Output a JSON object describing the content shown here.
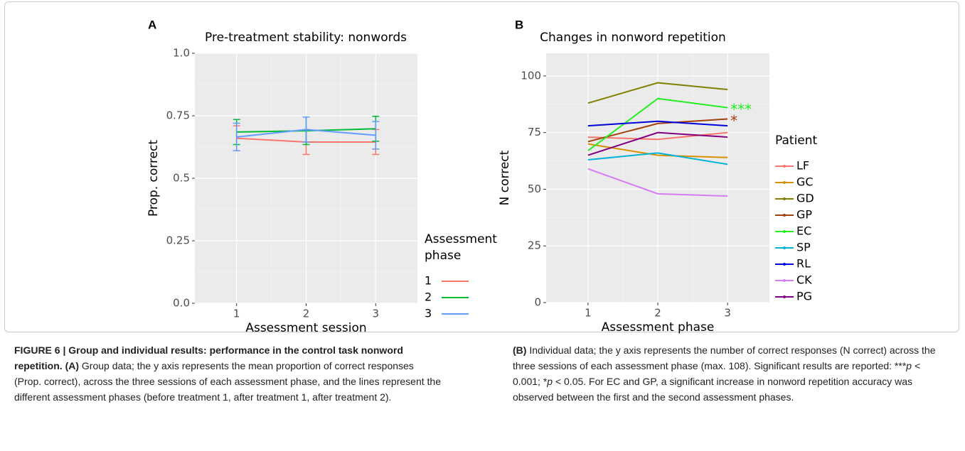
{
  "chart_data": [
    {
      "type": "line",
      "panel": "A",
      "title": "Pre-treatment stability: nonwords",
      "x_label": "Assessment session",
      "y_label": "Prop. correct",
      "x": [
        1,
        2,
        3
      ],
      "xlim": [
        0.4,
        3.6
      ],
      "xticks": [
        1,
        2,
        3
      ],
      "ylim": [
        0,
        1
      ],
      "yticks": [
        {
          "value": 0,
          "label": "0.0"
        },
        0.25,
        {
          "value": 0.5,
          "label": "0.5"
        },
        0.75,
        {
          "value": 1,
          "label": "1.0"
        }
      ],
      "grid": true,
      "legend_title": [
        "Assessment",
        "phase"
      ],
      "series": [
        {
          "name": "1",
          "color": "#F8766D",
          "values": [
            0.66,
            0.645,
            0.645
          ],
          "errors": [
            0.05,
            0.05,
            0.05
          ]
        },
        {
          "name": "2",
          "color": "#00BA38",
          "values": [
            0.685,
            0.69,
            0.698
          ],
          "errors": [
            0.05,
            0.055,
            0.05
          ]
        },
        {
          "name": "3",
          "color": "#619CFF",
          "values": [
            0.665,
            0.695,
            0.672
          ],
          "errors": [
            0.055,
            0.05,
            0.055
          ]
        }
      ]
    },
    {
      "type": "line",
      "panel": "B",
      "title": "Changes in nonword repetition",
      "x_label": "Assessment phase",
      "y_label": "N correct",
      "x": [
        1,
        2,
        3
      ],
      "xlim": [
        0.4,
        3.6
      ],
      "xticks": [
        1,
        2,
        3
      ],
      "ylim": [
        0,
        110
      ],
      "yticks": [
        0,
        25,
        50,
        75,
        100
      ],
      "grid": true,
      "legend_title": [
        "Patient"
      ],
      "series": [
        {
          "name": "LF",
          "color": "#F8766D",
          "values": [
            73,
            72,
            75
          ]
        },
        {
          "name": "GC",
          "color": "#D89000",
          "values": [
            70,
            65,
            64
          ]
        },
        {
          "name": "GD",
          "color": "#808000",
          "values": [
            88,
            97,
            94
          ]
        },
        {
          "name": "GP",
          "color": "#A3400B",
          "values": [
            71,
            79,
            81
          ]
        },
        {
          "name": "EC",
          "color": "#22EE22",
          "values": [
            67,
            90,
            86
          ]
        },
        {
          "name": "SP",
          "color": "#00B4D8",
          "values": [
            63,
            66,
            61
          ]
        },
        {
          "name": "RL",
          "color": "#0000DD",
          "values": [
            78,
            80,
            78
          ]
        },
        {
          "name": "CK",
          "color": "#D67CF0",
          "values": [
            59,
            48,
            47
          ]
        },
        {
          "name": "PG",
          "color": "#800080",
          "values": [
            65,
            75,
            73
          ]
        }
      ],
      "annotations": [
        {
          "text": "***",
          "series": "EC"
        },
        {
          "text": "*",
          "series": "GP"
        }
      ]
    }
  ],
  "caption": {
    "left": {
      "title": "FIGURE 6 | Group and individual results: performance in the control task nonword repetition.",
      "label": "(A)",
      "text": "Group data; the y axis represents the mean proportion of correct responses (Prop. correct), across the three sessions of each assessment phase, and the lines represent the different assessment phases (before treatment 1, after treatment 1, after treatment 2)."
    },
    "right": {
      "label": "(B)",
      "segments": [
        {
          "text": "Individual data; the y axis represents the number of correct responses (N correct) across the three sessions of each assessment phase (max. 108). Significant results are reported: ***"
        },
        {
          "text": "p",
          "italic": true
        },
        {
          "text": " < 0.001; *"
        },
        {
          "text": "p",
          "italic": true
        },
        {
          "text": " < 0.05. For EC and GP, a significant increase in nonword repetition accuracy was observed between the first and the second assessment phases."
        }
      ]
    }
  }
}
